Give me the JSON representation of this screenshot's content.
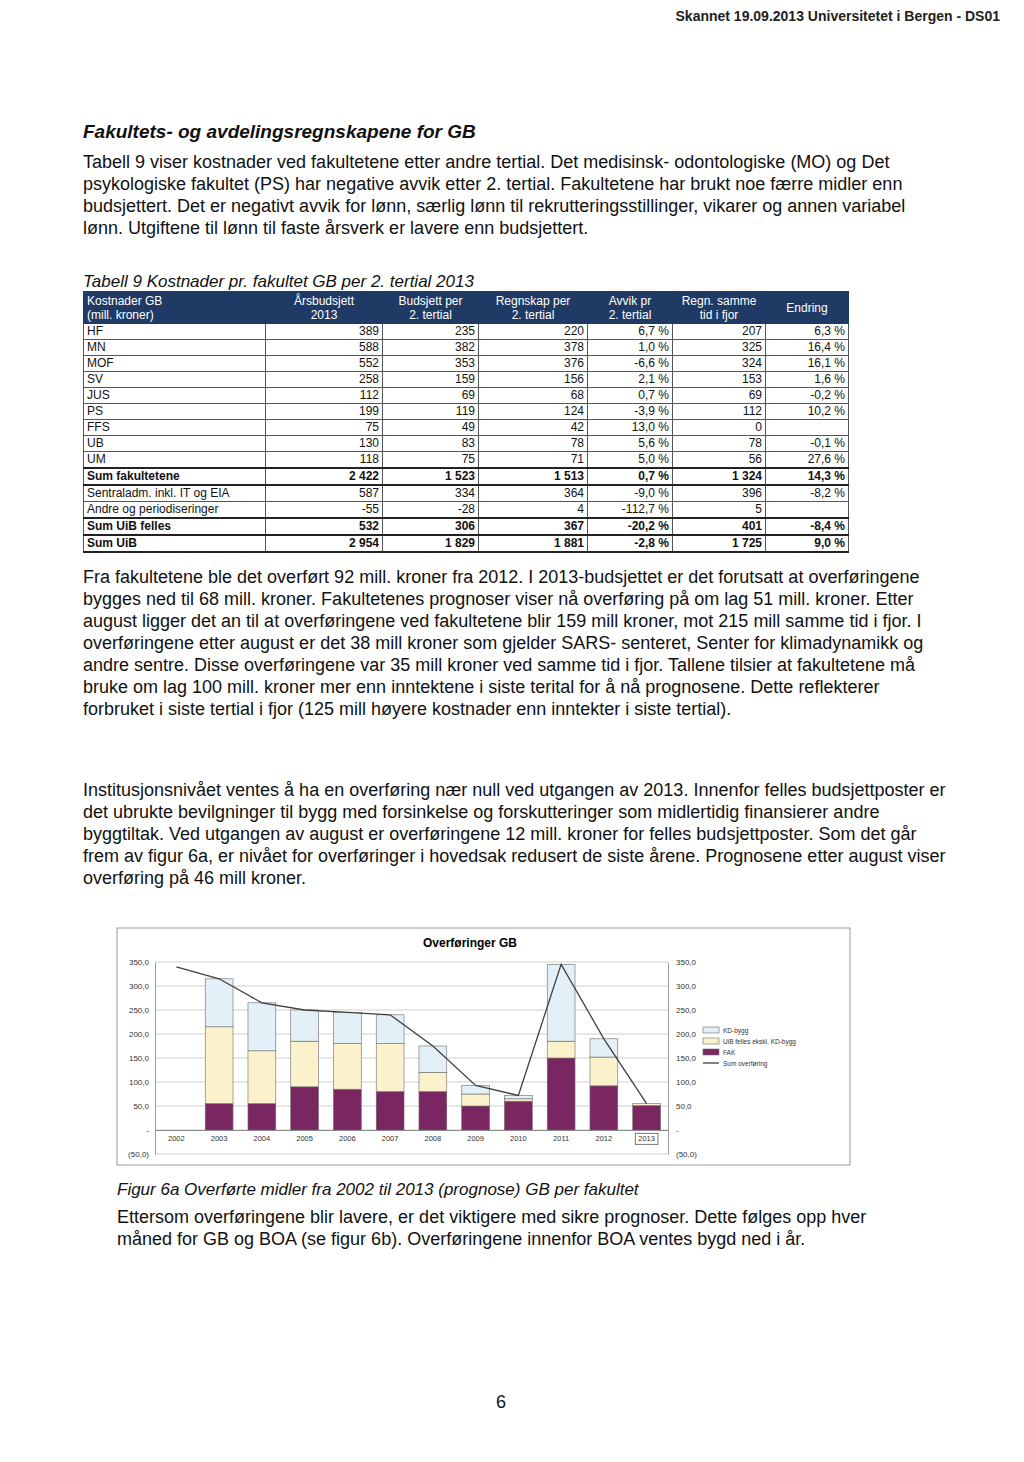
{
  "header": "Skannet 19.09.2013 Universitetet i Bergen - DS01",
  "heading": "Fakultets- og avdelingsregnskapene for GB",
  "intro": "Tabell 9 viser kostnader ved fakultetene etter andre tertial. Det medisinsk- odontologiske (MO) og Det psykologiske fakultet (PS) har negative avvik etter 2. tertial. Fakultetene har brukt noe færre midler enn budsjettert. Det er negativt avvik for lønn, særlig lønn til rekrutteringsstillinger, vikarer og annen variabel lønn. Utgiftene til lønn til faste årsverk er lavere enn budsjettert.",
  "table": {
    "caption": "Tabell 9 Kostnader pr. fakultet GB per 2. tertial 2013",
    "columns": [
      [
        "Kostnader GB",
        "(mill. kroner)"
      ],
      [
        "Årsbudsjett",
        "2013"
      ],
      [
        "Budsjett per",
        "2. tertial"
      ],
      [
        "Regnskap per",
        "2. tertial"
      ],
      [
        "Avvik pr",
        "2. tertial"
      ],
      [
        "Regn. samme",
        "tid i fjor"
      ],
      [
        "Endring"
      ]
    ],
    "rows": [
      [
        "HF",
        "389",
        "235",
        "220",
        "6,7 %",
        "207",
        "6,3 %"
      ],
      [
        "MN",
        "588",
        "382",
        "378",
        "1,0 %",
        "325",
        "16,4 %"
      ],
      [
        "MOF",
        "552",
        "353",
        "376",
        "-6,6 %",
        "324",
        "16,1 %"
      ],
      [
        "SV",
        "258",
        "159",
        "156",
        "2,1 %",
        "153",
        "1,6 %"
      ],
      [
        "JUS",
        "112",
        "69",
        "68",
        "0,7 %",
        "69",
        "-0,2 %"
      ],
      [
        "PS",
        "199",
        "119",
        "124",
        "-3,9 %",
        "112",
        "10,2 %"
      ],
      [
        "FFS",
        "75",
        "49",
        "42",
        "13,0 %",
        "0",
        null
      ],
      [
        "UB",
        "130",
        "83",
        "78",
        "5,6 %",
        "78",
        "-0,1 %"
      ],
      [
        "UM",
        "118",
        "75",
        "71",
        "5,0 %",
        "56",
        "27,6 %"
      ],
      [
        "Sum fakultetene",
        "2 422",
        "1 523",
        "1 513",
        "0,7 %",
        "1 324",
        "14,3 %"
      ],
      [
        "Sentraladm. inkl. IT og EIA",
        "587",
        "334",
        "364",
        "-9,0 %",
        "396",
        "-8,2 %"
      ],
      [
        "Andre og periodiseringer",
        "-55",
        "-28",
        "4",
        "-112,7 %",
        "5",
        null
      ],
      [
        "Sum UiB felles",
        "532",
        "306",
        "367",
        "-20,2 %",
        "401",
        "-8,4 %"
      ],
      [
        "Sum UiB",
        "2 954",
        "1 829",
        "1 881",
        "-2,8 %",
        "1 725",
        "9,0 %"
      ]
    ]
  },
  "paragraphs": [
    "Fra fakultetene ble det overført 92 mill. kroner fra 2012. I 2013-budsjettet er det forutsatt at overføringene bygges ned til 68 mill. kroner. Fakultetenes prognoser viser nå overføring på om lag 51 mill. kroner. Etter august ligger det an til at overføringene ved fakultetene blir 159 mill kroner, mot 215 mill samme tid i fjor. I overføringene etter august er det 38 mill kroner som gjelder SARS- senteret, Senter for klimadynamikk og andre sentre. Disse overføringene var 35 mill kroner ved samme tid i fjor. Tallene tilsier at fakultetene må bruke om lag 100 mill. kroner mer enn inntektene i siste terital for å nå prognosene. Dette reflekterer forbruket i siste tertial i fjor (125 mill høyere kostnader enn inntekter i siste tertial).",
    "Institusjonsnivået ventes å ha en overføring nær null ved utgangen av 2013. Innenfor felles budsjettposter er det ubrukte bevilgninger til bygg med forsinkelse og forskutteringer som midlertidig finansierer andre byggtiltak. Ved utgangen av august er overføringene 12 mill. kroner for felles budsjettposter. Som det går frem av figur 6a, er nivået for overføringer i hovedsak redusert de siste årene. Prognosene etter august viser overføring på 46 mill kroner."
  ],
  "chart_data": {
    "type": "bar",
    "title": "Overføringer GB",
    "categories": [
      "2002",
      "2003",
      "2004",
      "2005",
      "2006",
      "2007",
      "2008",
      "2009",
      "2010",
      "2011",
      "2012",
      "2013"
    ],
    "series": [
      {
        "name": "FAK",
        "color": "#7a2660",
        "values": [
          null,
          55,
          55,
          90,
          85,
          80,
          80,
          50,
          60,
          150,
          92,
          51
        ]
      },
      {
        "name": "UiB felles ekskl. KD-bygg",
        "color": "#fbf2cc",
        "values": [
          null,
          160,
          110,
          95,
          95,
          100,
          40,
          25,
          5,
          35,
          60,
          4
        ]
      },
      {
        "name": "KD-bygg",
        "color": "#e3f0f7",
        "values": [
          null,
          100,
          100,
          65,
          65,
          60,
          55,
          18,
          7,
          160,
          38,
          0
        ]
      },
      {
        "name": "Sum overføring",
        "type": "line",
        "axis": "y2",
        "color": "#404040",
        "values": [
          340,
          315,
          265,
          250,
          245,
          240,
          175,
          93,
          72,
          345,
          190,
          55
        ]
      }
    ],
    "stacked": true,
    "grid": true,
    "legend": "right",
    "ylim": [
      -50,
      350
    ],
    "yticks": [
      {
        "value": -50,
        "label": "(50,0)"
      },
      {
        "value": 0,
        "label": "-"
      },
      {
        "value": 50,
        "label": "50,0"
      },
      {
        "value": 100,
        "label": "100,0"
      },
      {
        "value": 150,
        "label": "150,0"
      },
      {
        "value": 200,
        "label": "200,0"
      },
      {
        "value": 250,
        "label": "250,0"
      },
      {
        "value": 300,
        "label": "300,0"
      },
      {
        "value": 350,
        "label": "350,0"
      }
    ],
    "y2lim": [
      -50,
      350
    ],
    "y2ticks": [
      {
        "value": -50,
        "label": "(50,0)"
      },
      {
        "value": 0,
        "label": "-"
      },
      {
        "value": 50,
        "label": "50,0"
      },
      {
        "value": 100,
        "label": "100,0"
      },
      {
        "value": 150,
        "label": "150,0"
      },
      {
        "value": 200,
        "label": "200,0"
      },
      {
        "value": 250,
        "label": "250,0"
      },
      {
        "value": 300,
        "label": "300,0"
      },
      {
        "value": 350,
        "label": "350,0"
      }
    ]
  },
  "figure_caption": "Figur 6a Overførte midler fra 2002 til 2013 (prognose) GB per fakultet",
  "closing": "Ettersom overføringene blir lavere, er det viktigere med sikre prognoser. Dette følges opp hver måned for GB og BOA (se figur 6b). Overføringene innenfor BOA ventes bygd ned i år.",
  "page_number": "6"
}
